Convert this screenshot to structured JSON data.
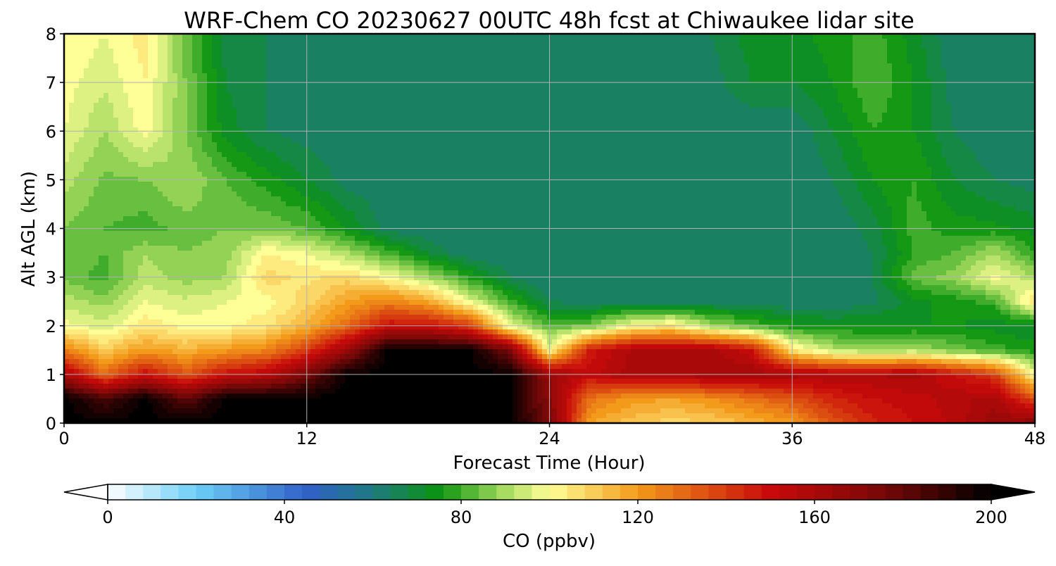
{
  "chart_data": {
    "type": "heatmap",
    "title": "WRF-Chem CO  20230627 00UTC 48h fcst at Chiwaukee lidar site",
    "xlabel": "Forecast Time (Hour)",
    "ylabel": "Alt AGL (km)",
    "xlim": [
      0,
      48
    ],
    "ylim": [
      0,
      8
    ],
    "x_ticks": [
      0,
      12,
      24,
      36,
      48
    ],
    "y_ticks": [
      0,
      1,
      2,
      3,
      4,
      5,
      6,
      7,
      8
    ],
    "grid": true,
    "colorbar": {
      "label": "CO  (ppbv)",
      "range": [
        0,
        200
      ],
      "ticks": [
        0,
        40,
        80,
        120,
        160,
        200
      ],
      "extend": "both",
      "colormap_stops": [
        {
          "value": 0,
          "color": "#ffffff"
        },
        {
          "value": 20,
          "color": "#6ccff6"
        },
        {
          "value": 45,
          "color": "#3060c8"
        },
        {
          "value": 60,
          "color": "#1f7a80"
        },
        {
          "value": 75,
          "color": "#0a9410"
        },
        {
          "value": 90,
          "color": "#a8dc60"
        },
        {
          "value": 100,
          "color": "#ffff98"
        },
        {
          "value": 120,
          "color": "#f39a1a"
        },
        {
          "value": 150,
          "color": "#c80a0a"
        },
        {
          "value": 175,
          "color": "#7a0808"
        },
        {
          "value": 200,
          "color": "#000000"
        }
      ]
    },
    "z_units": "ppbv",
    "x": [
      0,
      2,
      4,
      6,
      8,
      10,
      12,
      14,
      16,
      18,
      20,
      22,
      24,
      26,
      28,
      30,
      32,
      34,
      36,
      38,
      40,
      42,
      44,
      46,
      48
    ],
    "y": [
      0,
      0.5,
      1,
      1.5,
      2,
      2.5,
      3,
      3.5,
      4,
      5,
      6,
      7,
      8
    ],
    "z": [
      [
        200,
        200,
        200,
        200,
        200,
        200,
        200,
        200,
        200,
        200,
        200,
        200,
        175,
        118,
        112,
        108,
        110,
        115,
        120,
        135,
        145,
        150,
        155,
        165,
        170
      ],
      [
        200,
        185,
        200,
        180,
        200,
        200,
        200,
        200,
        200,
        200,
        200,
        200,
        170,
        128,
        120,
        118,
        122,
        128,
        135,
        145,
        150,
        152,
        156,
        160,
        135
      ],
      [
        160,
        130,
        150,
        135,
        150,
        155,
        175,
        200,
        200,
        200,
        200,
        200,
        165,
        152,
        160,
        160,
        162,
        162,
        160,
        158,
        158,
        160,
        150,
        140,
        100
      ],
      [
        125,
        110,
        120,
        115,
        120,
        125,
        140,
        165,
        200,
        200,
        200,
        175,
        100,
        148,
        158,
        160,
        160,
        150,
        105,
        92,
        88,
        90,
        85,
        80,
        76
      ],
      [
        100,
        95,
        105,
        100,
        100,
        105,
        115,
        130,
        150,
        150,
        140,
        98,
        82,
        85,
        100,
        105,
        90,
        82,
        76,
        74,
        74,
        74,
        74,
        72,
        70
      ],
      [
        92,
        88,
        98,
        95,
        98,
        100,
        108,
        118,
        125,
        118,
        98,
        80,
        66,
        64,
        64,
        64,
        64,
        64,
        62,
        62,
        65,
        72,
        76,
        80,
        108
      ],
      [
        85,
        80,
        92,
        88,
        90,
        108,
        105,
        108,
        100,
        90,
        78,
        66,
        62,
        62,
        62,
        62,
        62,
        62,
        62,
        62,
        66,
        84,
        88,
        100,
        90
      ],
      [
        86,
        82,
        90,
        86,
        88,
        102,
        98,
        90,
        80,
        70,
        62,
        62,
        62,
        62,
        62,
        62,
        62,
        62,
        62,
        62,
        66,
        78,
        82,
        90,
        78
      ],
      [
        86,
        82,
        80,
        84,
        86,
        85,
        82,
        74,
        64,
        62,
        62,
        62,
        62,
        62,
        62,
        62,
        62,
        62,
        62,
        62,
        68,
        80,
        76,
        75,
        72
      ],
      [
        92,
        85,
        86,
        90,
        82,
        76,
        70,
        64,
        62,
        62,
        62,
        62,
        62,
        62,
        62,
        62,
        62,
        62,
        62,
        66,
        74,
        78,
        70,
        66,
        64
      ],
      [
        98,
        90,
        100,
        86,
        72,
        66,
        64,
        62,
        62,
        62,
        62,
        62,
        62,
        62,
        62,
        62,
        62,
        62,
        62,
        70,
        78,
        74,
        66,
        62,
        62
      ],
      [
        100,
        95,
        102,
        86,
        70,
        66,
        64,
        64,
        62,
        62,
        62,
        62,
        62,
        62,
        62,
        62,
        64,
        70,
        70,
        74,
        82,
        74,
        64,
        62,
        62
      ],
      [
        102,
        98,
        104,
        84,
        68,
        66,
        66,
        66,
        64,
        64,
        64,
        64,
        64,
        64,
        64,
        64,
        66,
        72,
        72,
        76,
        80,
        72,
        62,
        62,
        62
      ]
    ]
  }
}
